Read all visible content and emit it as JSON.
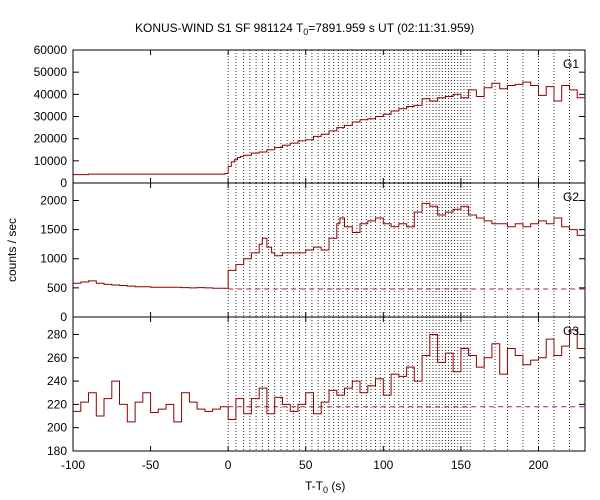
{
  "chart_data": {
    "type": "line",
    "title_parts": {
      "prefix": "KONUS-WIND S1 SF 981124 T",
      "sub": "0",
      "suffix": "=7891.959 s UT (02:11:31.959)"
    },
    "ylabel": "counts / sec",
    "xlabel_parts": {
      "prefix": "T-T",
      "sub": "0",
      "suffix": " (s)"
    },
    "x_range": [
      -100,
      230
    ],
    "x_ticks": [
      "-100",
      "-50",
      "0",
      "50",
      "100",
      "150",
      "200"
    ],
    "x_tick_values": [
      -100,
      -50,
      0,
      50,
      100,
      150,
      200
    ],
    "grid": false,
    "interval_boundaries_s": [
      0,
      5,
      10,
      14,
      18,
      22,
      26,
      30,
      34,
      38,
      42,
      46,
      50,
      54,
      58,
      62,
      65,
      68,
      71,
      74,
      77,
      80,
      83,
      86,
      89,
      92,
      95,
      98,
      101,
      104,
      107,
      110,
      113,
      116,
      119,
      122,
      125,
      128,
      130,
      132,
      134,
      136,
      138,
      140,
      142,
      144,
      146,
      148,
      150,
      152,
      154,
      156,
      165,
      172,
      180,
      190,
      200,
      210,
      220,
      230
    ],
    "panels": [
      {
        "name": "G1",
        "ylim": [
          0,
          60000
        ],
        "y_ticks": [
          "0",
          "10000",
          "20000",
          "30000",
          "40000",
          "50000",
          "60000"
        ],
        "y_tick_values": [
          0,
          10000,
          20000,
          30000,
          40000,
          50000,
          60000
        ],
        "series": [
          {
            "x": [
              -100,
              -90,
              -80,
              -70,
              -60,
              -50,
              -40,
              -30,
              -20,
              -10,
              -2,
              0,
              2,
              4,
              6,
              8,
              10,
              15,
              20,
              25,
              30,
              35,
              40,
              45,
              50,
              55,
              60,
              65,
              70,
              75,
              80,
              85,
              90,
              95,
              100,
              105,
              110,
              115,
              120,
              125,
              130,
              135,
              140,
              145,
              150,
              155,
              160,
              165,
              170,
              175,
              180,
              185,
              190,
              195,
              200,
              205,
              210,
              215,
              220,
              225,
              230
            ],
            "y": [
              3800,
              4000,
              4000,
              4000,
              4000,
              4000,
              4000,
              4000,
              4000,
              4000,
              4300,
              7500,
              9500,
              10500,
              11500,
              12000,
              12500,
              13500,
              14000,
              15000,
              16000,
              17000,
              18000,
              19000,
              19500,
              21000,
              22000,
              23500,
              25000,
              26000,
              27500,
              28500,
              29000,
              30000,
              31000,
              32500,
              33500,
              34500,
              35000,
              38000,
              37000,
              38500,
              39000,
              40000,
              38500,
              42000,
              39000,
              43000,
              45000,
              42500,
              44000,
              44500,
              45500,
              44000,
              39500,
              43500,
              37000,
              44000,
              42000,
              38500,
              41000
            ]
          }
        ]
      },
      {
        "name": "G2",
        "ylim": [
          0,
          2300
        ],
        "y_ticks": [
          "0",
          "500",
          "1000",
          "1500",
          "2000"
        ],
        "y_tick_values": [
          0,
          500,
          1000,
          1500,
          2000
        ],
        "background": 480,
        "series": [
          {
            "x": [
              -100,
              -95,
              -90,
              -85,
              -80,
              -75,
              -70,
              -65,
              -60,
              -55,
              -50,
              -45,
              -40,
              -35,
              -30,
              -25,
              -20,
              -15,
              -10,
              -5,
              0,
              5,
              10,
              15,
              20,
              22,
              25,
              28,
              30,
              35,
              40,
              45,
              50,
              55,
              60,
              65,
              70,
              72,
              75,
              80,
              85,
              90,
              95,
              100,
              105,
              110,
              115,
              120,
              125,
              130,
              135,
              140,
              145,
              150,
              155,
              160,
              165,
              170,
              175,
              180,
              185,
              190,
              195,
              200,
              205,
              210,
              215,
              220,
              225,
              230
            ],
            "y": [
              580,
              600,
              620,
              580,
              560,
              550,
              540,
              530,
              520,
              520,
              510,
              510,
              510,
              510,
              505,
              500,
              505,
              500,
              495,
              495,
              800,
              900,
              1000,
              1100,
              1250,
              1350,
              1200,
              1100,
              1050,
              1100,
              1100,
              1100,
              1150,
              1200,
              1150,
              1350,
              1600,
              1700,
              1550,
              1450,
              1600,
              1650,
              1700,
              1600,
              1550,
              1600,
              1550,
              1800,
              1950,
              1900,
              1750,
              1800,
              1850,
              1900,
              1750,
              1700,
              1650,
              1600,
              1600,
              1550,
              1600,
              1550,
              1600,
              1650,
              1600,
              1700,
              1550,
              1500,
              1400,
              1200
            ]
          }
        ]
      },
      {
        "name": "G3",
        "ylim": [
          180,
          295
        ],
        "y_ticks": [
          "180",
          "200",
          "220",
          "240",
          "260",
          "280"
        ],
        "y_tick_values": [
          180,
          200,
          220,
          240,
          260,
          280
        ],
        "background": 218,
        "series": [
          {
            "x": [
              -100,
              -95,
              -90,
              -85,
              -80,
              -75,
              -70,
              -65,
              -60,
              -55,
              -50,
              -45,
              -40,
              -35,
              -30,
              -25,
              -20,
              -15,
              -10,
              -5,
              0,
              5,
              10,
              15,
              20,
              25,
              30,
              35,
              40,
              45,
              50,
              55,
              60,
              65,
              70,
              75,
              80,
              85,
              90,
              95,
              100,
              105,
              110,
              115,
              120,
              125,
              130,
              135,
              140,
              145,
              150,
              155,
              160,
              165,
              170,
              175,
              180,
              185,
              190,
              195,
              200,
              205,
              210,
              215,
              220,
              225,
              230
            ],
            "y": [
              214,
              222,
              230,
              210,
              225,
              240,
              220,
              205,
              222,
              230,
              213,
              216,
              220,
              205,
              230,
              222,
              216,
              214,
              216,
              218,
              207,
              225,
              212,
              225,
              234,
              212,
              226,
              220,
              214,
              220,
              230,
              212,
              222,
              232,
              228,
              234,
              240,
              230,
              236,
              242,
              228,
              246,
              244,
              252,
              240,
              262,
              280,
              256,
              264,
              248,
              268,
              262,
              252,
              260,
              272,
              246,
              268,
              262,
              254,
              258,
              260,
              276,
              262,
              270,
              284,
              268,
              276
            ]
          }
        ]
      }
    ]
  }
}
